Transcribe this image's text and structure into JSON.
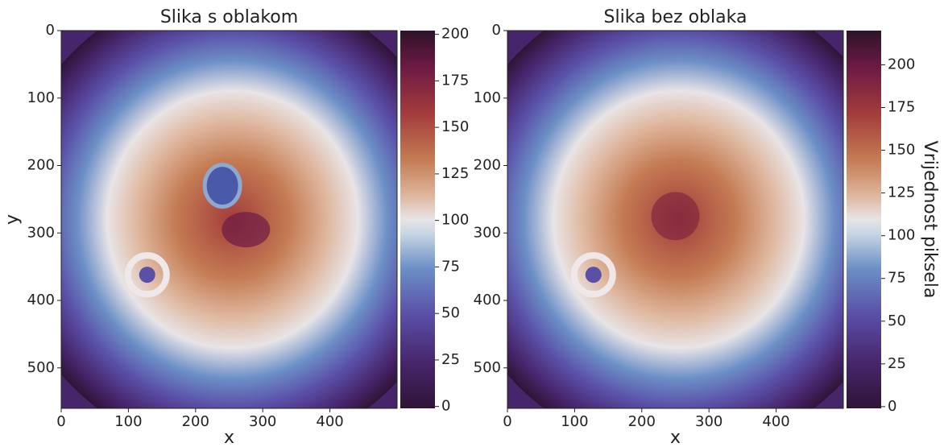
{
  "chart_data": [
    {
      "type": "image",
      "title": "Slika s oblakom",
      "xlabel": "x",
      "ylabel": "y",
      "xlim": [
        0,
        500
      ],
      "ylim": [
        560,
        0
      ],
      "xticks": [
        0,
        100,
        200,
        300,
        400
      ],
      "yticks": [
        0,
        100,
        200,
        300,
        400,
        500
      ],
      "colormap": "twilight_shifted",
      "cloud": true,
      "colorbar": {
        "lim": [
          -1,
          202
        ],
        "ticks": [
          0,
          25,
          50,
          75,
          100,
          125,
          150,
          175,
          200
        ]
      }
    },
    {
      "type": "image",
      "title": "Slika bez oblaka",
      "xlabel": "x",
      "xlim": [
        0,
        500
      ],
      "ylim": [
        560,
        0
      ],
      "xticks": [
        0,
        100,
        200,
        300,
        400
      ],
      "yticks": [
        0,
        100,
        200,
        300,
        400,
        500
      ],
      "colormap": "twilight_shifted",
      "cloud": false,
      "colorbar": {
        "lim": [
          -1,
          220
        ],
        "ticks": [
          0,
          25,
          50,
          75,
          100,
          125,
          150,
          175,
          200
        ],
        "label": "Vrijednost piksela"
      }
    }
  ]
}
